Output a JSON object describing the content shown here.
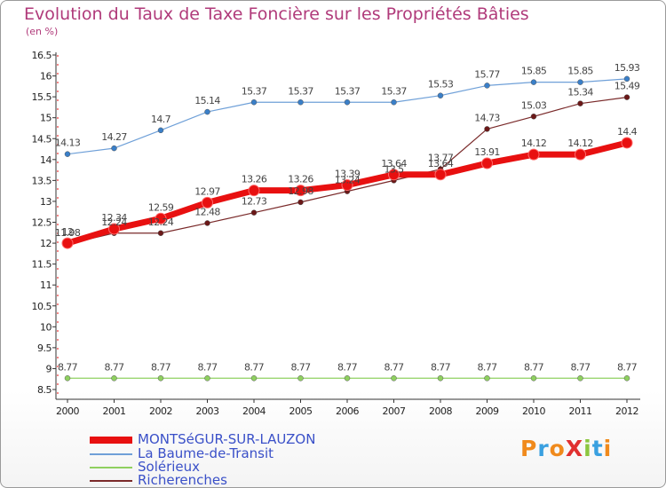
{
  "title": "Evolution du Taux de Taxe Foncière sur les Propriétés Bâties",
  "unit_label": "(en %)",
  "logo_text": "ProXiti",
  "chart_data": {
    "type": "line",
    "x": [
      2000,
      2001,
      2002,
      2003,
      2004,
      2005,
      2006,
      2007,
      2008,
      2009,
      2010,
      2011,
      2012
    ],
    "ylim": [
      8.5,
      16.5
    ],
    "yticks": [
      "8.5",
      "9",
      "9.5",
      "10",
      "10.5",
      "11",
      "11.5",
      "12",
      "12.5",
      "13",
      "13.5",
      "14",
      "14.5",
      "15",
      "15.5",
      "16",
      "16.5"
    ],
    "grid": false,
    "legend_position": "bottom-left",
    "series": [
      {
        "name": "MONTSéGUR-SUR-LAUZON",
        "color": "#e81010",
        "values": [
          12,
          12.34,
          12.59,
          12.97,
          13.26,
          13.26,
          13.39,
          13.64,
          13.64,
          13.91,
          14.12,
          14.12,
          14.4
        ]
      },
      {
        "name": "La Baume-de-Transit",
        "color": "#6fa0d8",
        "values": [
          14.13,
          14.27,
          14.7,
          15.14,
          15.37,
          15.37,
          15.37,
          15.37,
          15.53,
          15.77,
          15.85,
          15.85,
          15.93
        ]
      },
      {
        "name": "Solérieux",
        "color": "#8fd060",
        "values": [
          8.77,
          8.77,
          8.77,
          8.77,
          8.77,
          8.77,
          8.77,
          8.77,
          8.77,
          8.77,
          8.77,
          8.77,
          8.77
        ]
      },
      {
        "name": "Richerenches",
        "color": "#7a2a2a",
        "values": [
          11.98,
          12.24,
          12.24,
          12.48,
          12.73,
          12.98,
          13.24,
          13.5,
          13.77,
          14.73,
          15.03,
          15.34,
          15.49
        ]
      }
    ],
    "data_labels": [
      [
        "12",
        "12.34",
        "12.59",
        "12.97",
        "13.26",
        "13.26",
        "13.39",
        "13.64",
        "13.64",
        "13.91",
        "14.12",
        "14.12",
        "14.4"
      ],
      [
        "14.13",
        "14.27",
        "14.7",
        "15.14",
        "15.37",
        "15.37",
        "15.37",
        "15.37",
        "15.53",
        "15.77",
        "15.85",
        "15.85",
        "15.93"
      ],
      [
        "8.77",
        "8.77",
        "8.77",
        "8.77",
        "8.77",
        "8.77",
        "8.77",
        "8.77",
        "8.77",
        "8.77",
        "8.77",
        "8.77",
        "8.77"
      ],
      [
        "11.98",
        "12.24",
        "12.24",
        "12.48",
        "12.73",
        "12.98",
        "13.24",
        "13.5",
        "13.77",
        "14.73",
        "15.03",
        "15.34",
        "15.49"
      ]
    ]
  }
}
